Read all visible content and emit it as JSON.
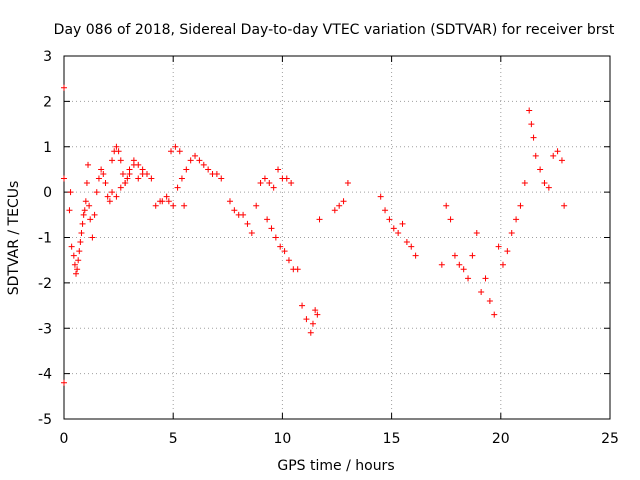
{
  "chart_data": {
    "type": "scatter",
    "title": "Day 086 of 2018, Sidereal Day-to-day VTEC variation (SDTVAR) for receiver brst",
    "xlabel": "GPS time / hours",
    "ylabel": "SDTVAR / TECUs",
    "xlim": [
      0,
      25
    ],
    "ylim": [
      -5,
      3
    ],
    "xticks": [
      0,
      5,
      10,
      15,
      20,
      25
    ],
    "yticks": [
      -5,
      -4,
      -3,
      -2,
      -1,
      0,
      1,
      2,
      3
    ],
    "grid": true,
    "marker": "+",
    "series": [
      {
        "name": "SDTVAR",
        "color": "#ff0000",
        "x": [
          0.0,
          0.0,
          0.0,
          0.25,
          0.3,
          0.35,
          0.45,
          0.5,
          0.55,
          0.6,
          0.65,
          0.7,
          0.75,
          0.8,
          0.85,
          0.9,
          0.95,
          1.0,
          1.05,
          1.1,
          1.15,
          1.2,
          1.3,
          1.4,
          1.5,
          1.6,
          1.7,
          1.8,
          1.9,
          2.0,
          2.1,
          2.2,
          2.3,
          2.4,
          2.5,
          2.6,
          2.7,
          2.8,
          2.9,
          3.0,
          3.2,
          3.4,
          3.6,
          3.8,
          4.0,
          4.2,
          4.4,
          2.2,
          2.4,
          2.6,
          2.8,
          3.0,
          3.2,
          3.4,
          3.6,
          4.5,
          4.7,
          4.9,
          5.1,
          5.3,
          5.5,
          4.8,
          5.0,
          5.2,
          5.4,
          5.6,
          5.8,
          6.0,
          6.2,
          6.4,
          6.6,
          6.8,
          7.0,
          7.2,
          7.6,
          7.8,
          8.0,
          8.2,
          8.4,
          8.6,
          8.8,
          9.0,
          9.2,
          9.4,
          9.6,
          9.8,
          10.0,
          10.2,
          10.4,
          9.3,
          9.5,
          9.7,
          9.9,
          10.1,
          10.3,
          10.5,
          10.7,
          10.9,
          11.1,
          11.3,
          11.4,
          11.5,
          11.6,
          11.7,
          12.4,
          12.6,
          12.8,
          13.0,
          14.5,
          14.7,
          14.9,
          15.1,
          15.3,
          15.5,
          15.7,
          15.9,
          16.1,
          17.3,
          17.5,
          17.7,
          17.9,
          18.1,
          18.3,
          18.5,
          18.7,
          18.9,
          19.1,
          19.3,
          19.5,
          19.7,
          19.9,
          20.1,
          20.3,
          20.5,
          20.7,
          20.9,
          21.1,
          21.3,
          21.4,
          21.5,
          21.6,
          21.8,
          22.0,
          22.2,
          22.4,
          22.6,
          22.8,
          22.9
        ],
        "y": [
          2.3,
          0.3,
          -4.2,
          -0.4,
          0.0,
          -1.2,
          -1.4,
          -1.6,
          -1.8,
          -1.7,
          -1.5,
          -1.3,
          -1.1,
          -0.9,
          -0.7,
          -0.5,
          -0.4,
          -0.2,
          0.2,
          0.6,
          -0.3,
          -0.6,
          -1.0,
          -0.5,
          0.0,
          0.3,
          0.5,
          0.4,
          0.2,
          -0.1,
          -0.2,
          0.7,
          0.9,
          1.0,
          0.9,
          0.7,
          0.4,
          0.2,
          0.3,
          0.5,
          0.7,
          0.6,
          0.5,
          0.4,
          0.3,
          -0.3,
          -0.2,
          0.0,
          -0.1,
          0.1,
          0.2,
          0.4,
          0.6,
          0.3,
          0.4,
          -0.2,
          -0.1,
          0.9,
          1.0,
          0.9,
          -0.3,
          -0.2,
          -0.3,
          0.1,
          0.3,
          0.5,
          0.7,
          0.8,
          0.7,
          0.6,
          0.5,
          0.4,
          0.4,
          0.3,
          -0.2,
          -0.4,
          -0.5,
          -0.5,
          -0.7,
          -0.9,
          -0.3,
          0.2,
          0.3,
          0.2,
          0.1,
          0.5,
          0.3,
          0.3,
          0.2,
          -0.6,
          -0.8,
          -1.0,
          -1.2,
          -1.3,
          -1.5,
          -1.7,
          -1.7,
          -2.5,
          -2.8,
          -3.1,
          -2.9,
          -2.6,
          -2.7,
          -0.6,
          -0.4,
          -0.3,
          -0.2,
          0.2,
          -0.1,
          -0.4,
          -0.6,
          -0.8,
          -0.9,
          -0.7,
          -1.1,
          -1.2,
          -1.4,
          -1.6,
          -0.3,
          -0.6,
          -1.4,
          -1.6,
          -1.7,
          -1.9,
          -1.4,
          -0.9,
          -2.2,
          -1.9,
          -2.4,
          -2.7,
          -1.2,
          -1.6,
          -1.3,
          -0.9,
          -0.6,
          -0.3,
          0.2,
          1.8,
          1.5,
          1.2,
          0.8,
          0.5,
          0.2,
          0.1,
          0.8,
          0.9,
          0.7,
          -0.3
        ]
      }
    ]
  }
}
